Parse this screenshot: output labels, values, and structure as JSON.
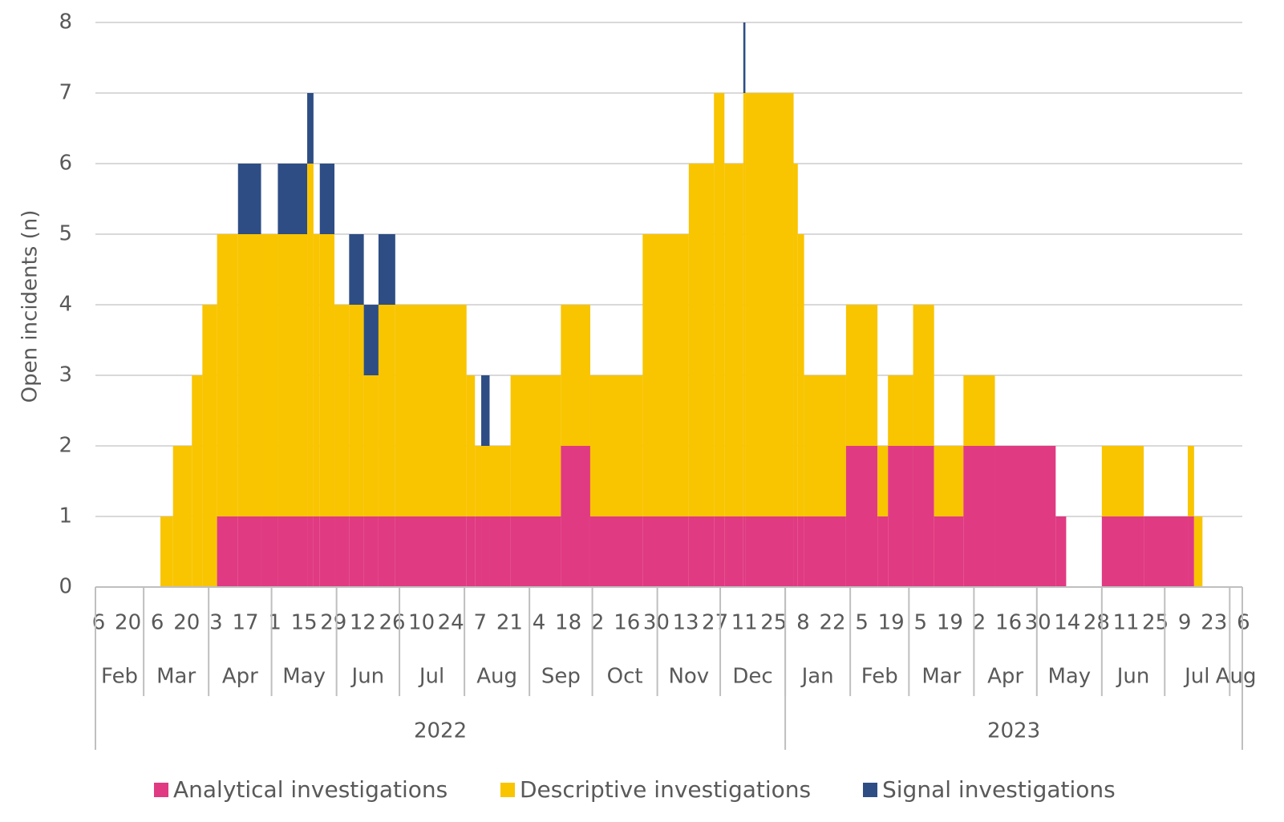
{
  "chart_data": {
    "type": "stacked-step-area",
    "y_label": "Open incidents (n)",
    "ylim": [
      0,
      8
    ],
    "yticks": [
      0,
      1,
      2,
      3,
      4,
      5,
      6,
      7,
      8
    ],
    "grid": true,
    "xlim": [
      "2022-02-06",
      "2023-08-07"
    ],
    "x": [
      "2022-02-06",
      "2022-03-09",
      "2022-03-15",
      "2022-03-24",
      "2022-03-29",
      "2022-04-05",
      "2022-04-15",
      "2022-04-26",
      "2022-05-04",
      "2022-05-18",
      "2022-05-21",
      "2022-05-24",
      "2022-05-31",
      "2022-06-07",
      "2022-06-14",
      "2022-06-21",
      "2022-06-29",
      "2022-08-02",
      "2022-08-06",
      "2022-08-09",
      "2022-08-13",
      "2022-08-23",
      "2022-09-16",
      "2022-09-30",
      "2022-10-25",
      "2022-11-16",
      "2022-11-28",
      "2022-12-03",
      "2022-12-12",
      "2022-12-13",
      "2023-01-05",
      "2023-01-07",
      "2023-01-10",
      "2023-01-30",
      "2023-02-14",
      "2023-02-19",
      "2023-03-03",
      "2023-03-13",
      "2023-03-27",
      "2023-04-11",
      "2023-05-10",
      "2023-05-15",
      "2023-06-01",
      "2023-06-21",
      "2023-07-12",
      "2023-07-15",
      "2023-07-19"
    ],
    "series": [
      {
        "name": "Analytical investigations",
        "color": "#e03a82",
        "values": [
          0,
          0,
          0,
          0,
          0,
          1,
          1,
          1,
          1,
          1,
          1,
          1,
          1,
          1,
          1,
          1,
          1,
          1,
          1,
          1,
          1,
          1,
          2,
          1,
          1,
          1,
          1,
          1,
          1,
          1,
          1,
          1,
          1,
          2,
          1,
          2,
          2,
          1,
          2,
          2,
          1,
          0,
          1,
          1,
          1,
          0,
          0
        ]
      },
      {
        "name": "Descriptive investigations",
        "color": "#f9c400",
        "values": [
          0,
          1,
          2,
          3,
          4,
          4,
          4,
          4,
          4,
          5,
          4,
          4,
          3,
          3,
          2,
          3,
          3,
          2,
          1,
          1,
          1,
          2,
          2,
          2,
          4,
          5,
          6,
          5,
          6,
          6,
          5,
          4,
          2,
          2,
          1,
          1,
          2,
          1,
          1,
          0,
          0,
          0,
          1,
          0,
          1,
          1,
          0
        ]
      },
      {
        "name": "Signal investigations",
        "color": "#2e4d84",
        "values": [
          0,
          0,
          0,
          0,
          0,
          0,
          1,
          0,
          1,
          1,
          0,
          1,
          0,
          1,
          1,
          1,
          0,
          0,
          0,
          1,
          0,
          0,
          0,
          0,
          0,
          0,
          0,
          0,
          1,
          0,
          0,
          0,
          0,
          0,
          0,
          0,
          0,
          0,
          0,
          0,
          0,
          0,
          0,
          0,
          0,
          0,
          0
        ]
      }
    ],
    "xticks": [
      {
        "value": "2022-02-06",
        "label": "6"
      },
      {
        "value": "2022-02-20",
        "label": "20"
      },
      {
        "value": "2022-03-06",
        "label": "6"
      },
      {
        "value": "2022-03-20",
        "label": "20"
      },
      {
        "value": "2022-04-03",
        "label": "3"
      },
      {
        "value": "2022-04-17",
        "label": "17"
      },
      {
        "value": "2022-05-01",
        "label": "1"
      },
      {
        "value": "2022-05-15",
        "label": "15"
      },
      {
        "value": "2022-05-29",
        "label": "29"
      },
      {
        "value": "2022-06-12",
        "label": "12"
      },
      {
        "value": "2022-06-26",
        "label": "26"
      },
      {
        "value": "2022-07-10",
        "label": "10"
      },
      {
        "value": "2022-07-24",
        "label": "24"
      },
      {
        "value": "2022-08-07",
        "label": "7"
      },
      {
        "value": "2022-08-21",
        "label": "21"
      },
      {
        "value": "2022-09-04",
        "label": "4"
      },
      {
        "value": "2022-09-18",
        "label": "18"
      },
      {
        "value": "2022-10-02",
        "label": "2"
      },
      {
        "value": "2022-10-16",
        "label": "16"
      },
      {
        "value": "2022-10-30",
        "label": "30"
      },
      {
        "value": "2022-11-13",
        "label": "13"
      },
      {
        "value": "2022-11-27",
        "label": "27"
      },
      {
        "value": "2022-12-11",
        "label": "11"
      },
      {
        "value": "2022-12-25",
        "label": "25"
      },
      {
        "value": "2023-01-08",
        "label": "8"
      },
      {
        "value": "2023-01-22",
        "label": "22"
      },
      {
        "value": "2023-02-05",
        "label": "5"
      },
      {
        "value": "2023-02-19",
        "label": "19"
      },
      {
        "value": "2023-03-05",
        "label": "5"
      },
      {
        "value": "2023-03-19",
        "label": "19"
      },
      {
        "value": "2023-04-02",
        "label": "2"
      },
      {
        "value": "2023-04-16",
        "label": "16"
      },
      {
        "value": "2023-04-30",
        "label": "30"
      },
      {
        "value": "2023-05-14",
        "label": "14"
      },
      {
        "value": "2023-05-28",
        "label": "28"
      },
      {
        "value": "2023-06-11",
        "label": "11"
      },
      {
        "value": "2023-06-25",
        "label": "25"
      },
      {
        "value": "2023-07-09",
        "label": "9"
      },
      {
        "value": "2023-07-23",
        "label": "23"
      },
      {
        "value": "2023-08-06",
        "label": "6"
      }
    ],
    "month_ticks": [
      {
        "value": "2022-02",
        "label": "Feb"
      },
      {
        "value": "2022-03",
        "label": "Mar"
      },
      {
        "value": "2022-04",
        "label": "Apr"
      },
      {
        "value": "2022-05",
        "label": "May"
      },
      {
        "value": "2022-06",
        "label": "Jun"
      },
      {
        "value": "2022-07",
        "label": "Jul"
      },
      {
        "value": "2022-08",
        "label": "Aug"
      },
      {
        "value": "2022-09",
        "label": "Sep"
      },
      {
        "value": "2022-10",
        "label": "Oct"
      },
      {
        "value": "2022-11",
        "label": "Nov"
      },
      {
        "value": "2022-12",
        "label": "Dec"
      },
      {
        "value": "2023-01",
        "label": "Jan"
      },
      {
        "value": "2023-02",
        "label": "Feb"
      },
      {
        "value": "2023-03",
        "label": "Mar"
      },
      {
        "value": "2023-04",
        "label": "Apr"
      },
      {
        "value": "2023-05",
        "label": "May"
      },
      {
        "value": "2023-06",
        "label": "Jun"
      },
      {
        "value": "2023-07",
        "label": "Jul"
      },
      {
        "value": "2023-08",
        "label": "Aug"
      }
    ],
    "year_ticks": [
      2022,
      2023
    ],
    "legend": "bottom"
  }
}
